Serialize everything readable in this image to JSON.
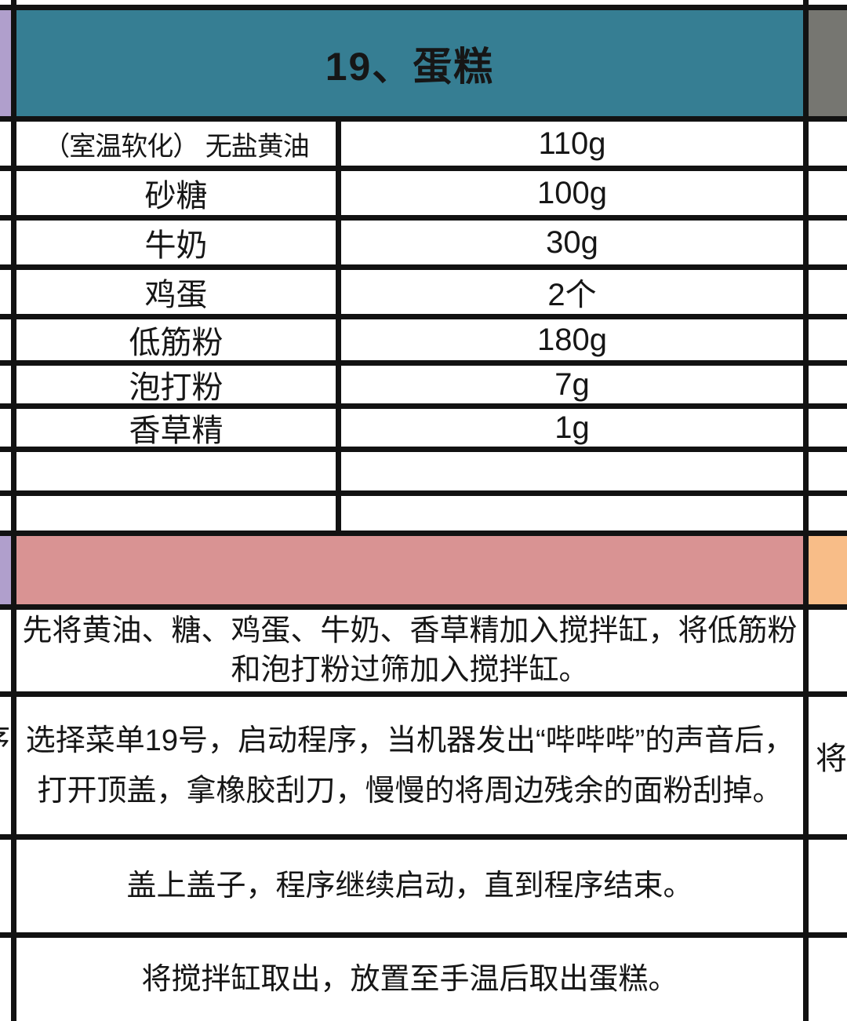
{
  "title": "19、蛋糕",
  "ingredients": [
    {
      "name": "（室温软化） 无盐黄油",
      "amount": "110g"
    },
    {
      "name": "砂糖",
      "amount": "100g"
    },
    {
      "name": "牛奶",
      "amount": "30g"
    },
    {
      "name": "鸡蛋",
      "amount": "2个"
    },
    {
      "name": "低筋粉",
      "amount": "180g"
    },
    {
      "name": "泡打粉",
      "amount": "7g"
    },
    {
      "name": "香草精",
      "amount": "1g"
    },
    {
      "name": "",
      "amount": ""
    },
    {
      "name": "",
      "amount": ""
    }
  ],
  "steps": [
    {
      "lines": [
        "先将黄油、糖、鸡蛋、牛奶、香草精加入搅拌缸，将低筋粉",
        "和泡打粉过筛加入搅拌缸。"
      ]
    },
    {
      "lines": [
        "选择菜单19号，启动程序，当机器发出“哔哔哔”的声音后，",
        "打开顶盖，拿橡胶刮刀，慢慢的将周边残余的面粉刮掉。"
      ]
    },
    {
      "lines": [
        "盖上盖子，程序继续启动，直到程序结束。"
      ]
    },
    {
      "lines": [
        "将搅拌缸取出，放置至手温后取出蛋糕。"
      ]
    }
  ],
  "partials": {
    "left": "序",
    "right": "将"
  },
  "colors": {
    "header-bg": "#367e93",
    "left-strip": "#b09fcc",
    "right-top": "#767671",
    "banner-bg": "#d99393",
    "banner-right": "#f8bd88",
    "border": "#121212",
    "text": "#161616"
  }
}
